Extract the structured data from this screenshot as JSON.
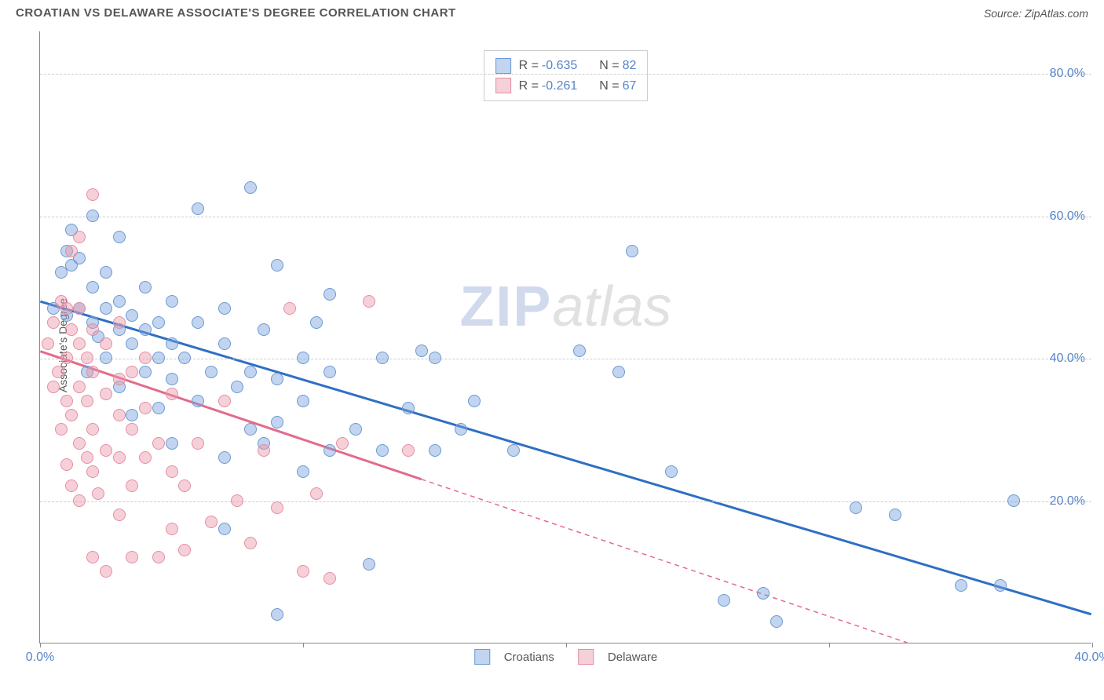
{
  "header": {
    "title": "CROATIAN VS DELAWARE ASSOCIATE'S DEGREE CORRELATION CHART",
    "source": "Source: ZipAtlas.com"
  },
  "chart": {
    "type": "scatter",
    "y_axis_label": "Associate's Degree",
    "background_color": "#ffffff",
    "grid_color": "#cccccc",
    "axis_color": "#888888",
    "label_color": "#5884c9",
    "text_color": "#555555",
    "xlim": [
      0,
      40
    ],
    "ylim": [
      0,
      86
    ],
    "x_ticks": [
      0,
      10,
      20,
      30,
      40
    ],
    "x_tick_labels": [
      "0.0%",
      "",
      "",
      "",
      "40.0%"
    ],
    "y_ticks": [
      20,
      40,
      60,
      80
    ],
    "y_tick_labels": [
      "20.0%",
      "40.0%",
      "60.0%",
      "80.0%"
    ],
    "marker_radius": 8,
    "watermark": {
      "zip": "ZIP",
      "atlas": "atlas"
    },
    "series": [
      {
        "name": "Croatians",
        "fill_color": "rgba(120,160,220,0.45)",
        "stroke_color": "#6a9ad4",
        "trend_color": "#2f6fc4",
        "trend_width": 3,
        "trend_dash": "none",
        "R": "-0.635",
        "N": "82",
        "trend": {
          "x1": 0,
          "y1": 48,
          "x2": 40,
          "y2": 4
        },
        "points": [
          [
            0.5,
            47
          ],
          [
            0.8,
            52
          ],
          [
            1.0,
            46
          ],
          [
            1.0,
            55
          ],
          [
            1.2,
            53
          ],
          [
            1.2,
            58
          ],
          [
            1.5,
            47
          ],
          [
            1.5,
            54
          ],
          [
            1.8,
            38
          ],
          [
            2.0,
            45
          ],
          [
            2.0,
            50
          ],
          [
            2.0,
            60
          ],
          [
            2.2,
            43
          ],
          [
            2.5,
            40
          ],
          [
            2.5,
            47
          ],
          [
            2.5,
            52
          ],
          [
            3.0,
            36
          ],
          [
            3.0,
            44
          ],
          [
            3.0,
            48
          ],
          [
            3.0,
            57
          ],
          [
            3.5,
            32
          ],
          [
            3.5,
            42
          ],
          [
            3.5,
            46
          ],
          [
            4.0,
            38
          ],
          [
            4.0,
            44
          ],
          [
            4.0,
            50
          ],
          [
            4.5,
            33
          ],
          [
            4.5,
            40
          ],
          [
            4.5,
            45
          ],
          [
            5.0,
            28
          ],
          [
            5.0,
            37
          ],
          [
            5.0,
            42
          ],
          [
            5.0,
            48
          ],
          [
            5.5,
            40
          ],
          [
            6.0,
            34
          ],
          [
            6.0,
            45
          ],
          [
            6.0,
            61
          ],
          [
            6.5,
            38
          ],
          [
            7.0,
            16
          ],
          [
            7.0,
            26
          ],
          [
            7.0,
            42
          ],
          [
            7.0,
            47
          ],
          [
            7.5,
            36
          ],
          [
            8.0,
            30
          ],
          [
            8.0,
            38
          ],
          [
            8.0,
            64
          ],
          [
            8.5,
            28
          ],
          [
            8.5,
            44
          ],
          [
            9.0,
            4
          ],
          [
            9.0,
            31
          ],
          [
            9.0,
            37
          ],
          [
            9.0,
            53
          ],
          [
            10.0,
            24
          ],
          [
            10.0,
            34
          ],
          [
            10.0,
            40
          ],
          [
            10.5,
            45
          ],
          [
            11.0,
            27
          ],
          [
            11.0,
            38
          ],
          [
            11.0,
            49
          ],
          [
            12.0,
            30
          ],
          [
            12.5,
            11
          ],
          [
            13.0,
            27
          ],
          [
            13.0,
            40
          ],
          [
            14.0,
            33
          ],
          [
            14.5,
            41
          ],
          [
            15.0,
            27
          ],
          [
            15.0,
            40
          ],
          [
            16.0,
            30
          ],
          [
            16.5,
            34
          ],
          [
            18.0,
            27
          ],
          [
            20.5,
            41
          ],
          [
            22.0,
            38
          ],
          [
            22.5,
            55
          ],
          [
            24.0,
            24
          ],
          [
            26.0,
            6
          ],
          [
            27.5,
            7
          ],
          [
            28.0,
            3
          ],
          [
            31.0,
            19
          ],
          [
            32.5,
            18
          ],
          [
            35.0,
            8
          ],
          [
            36.5,
            8
          ],
          [
            37.0,
            20
          ]
        ]
      },
      {
        "name": "Delaware",
        "fill_color": "rgba(235,150,170,0.45)",
        "stroke_color": "#e48fa3",
        "trend_color": "#e46a8a",
        "trend_width": 3,
        "trend_dash": "6,5",
        "R": "-0.261",
        "N": "67",
        "trend": {
          "x1": 0,
          "y1": 41,
          "x2": 14.5,
          "y2": 23
        },
        "trend_extend": {
          "x1": 14.5,
          "y1": 23,
          "x2": 33,
          "y2": 0
        },
        "points": [
          [
            0.3,
            42
          ],
          [
            0.5,
            36
          ],
          [
            0.5,
            45
          ],
          [
            0.7,
            38
          ],
          [
            0.8,
            30
          ],
          [
            0.8,
            48
          ],
          [
            1.0,
            25
          ],
          [
            1.0,
            34
          ],
          [
            1.0,
            40
          ],
          [
            1.0,
            47
          ],
          [
            1.2,
            22
          ],
          [
            1.2,
            32
          ],
          [
            1.2,
            44
          ],
          [
            1.2,
            55
          ],
          [
            1.5,
            20
          ],
          [
            1.5,
            28
          ],
          [
            1.5,
            36
          ],
          [
            1.5,
            42
          ],
          [
            1.5,
            47
          ],
          [
            1.5,
            57
          ],
          [
            1.8,
            26
          ],
          [
            1.8,
            34
          ],
          [
            1.8,
            40
          ],
          [
            2.0,
            12
          ],
          [
            2.0,
            24
          ],
          [
            2.0,
            30
          ],
          [
            2.0,
            38
          ],
          [
            2.0,
            44
          ],
          [
            2.0,
            63
          ],
          [
            2.2,
            21
          ],
          [
            2.5,
            10
          ],
          [
            2.5,
            27
          ],
          [
            2.5,
            35
          ],
          [
            2.5,
            42
          ],
          [
            3.0,
            18
          ],
          [
            3.0,
            26
          ],
          [
            3.0,
            32
          ],
          [
            3.0,
            37
          ],
          [
            3.0,
            45
          ],
          [
            3.5,
            12
          ],
          [
            3.5,
            22
          ],
          [
            3.5,
            30
          ],
          [
            3.5,
            38
          ],
          [
            4.0,
            26
          ],
          [
            4.0,
            33
          ],
          [
            4.0,
            40
          ],
          [
            4.5,
            12
          ],
          [
            4.5,
            28
          ],
          [
            5.0,
            16
          ],
          [
            5.0,
            24
          ],
          [
            5.0,
            35
          ],
          [
            5.5,
            13
          ],
          [
            5.5,
            22
          ],
          [
            6.0,
            28
          ],
          [
            6.5,
            17
          ],
          [
            7.0,
            34
          ],
          [
            7.5,
            20
          ],
          [
            8.0,
            14
          ],
          [
            8.5,
            27
          ],
          [
            9.0,
            19
          ],
          [
            9.5,
            47
          ],
          [
            10.0,
            10
          ],
          [
            10.5,
            21
          ],
          [
            11.0,
            9
          ],
          [
            11.5,
            28
          ],
          [
            12.5,
            48
          ],
          [
            14.0,
            27
          ]
        ]
      }
    ],
    "legend_bottom": [
      {
        "label": "Croatians",
        "fill": "rgba(120,160,220,0.45)",
        "stroke": "#6a9ad4"
      },
      {
        "label": "Delaware",
        "fill": "rgba(235,150,170,0.45)",
        "stroke": "#e48fa3"
      }
    ]
  }
}
